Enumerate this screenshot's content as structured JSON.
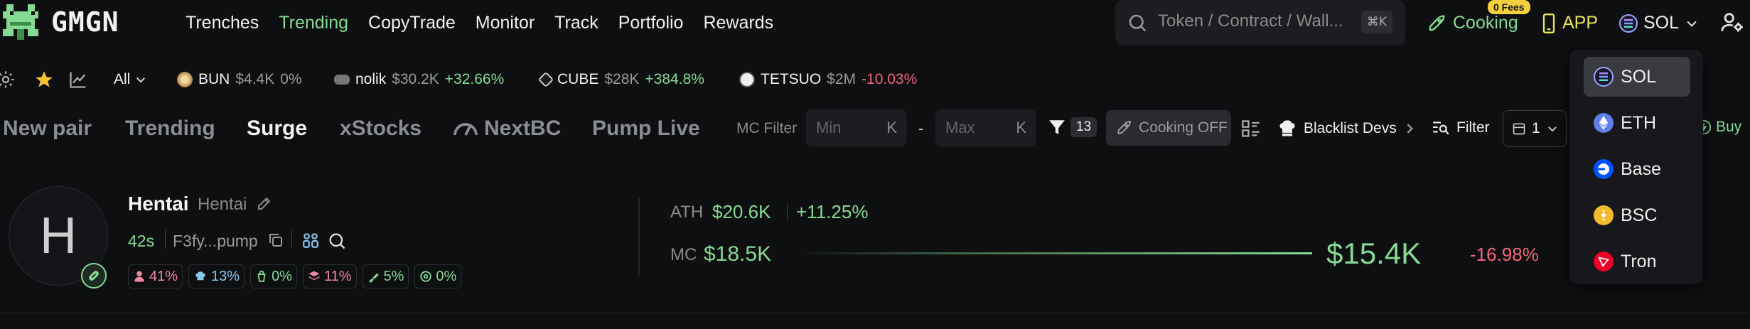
{
  "header": {
    "brand": "GMGN",
    "nav": [
      {
        "label": "Trenches",
        "active": false
      },
      {
        "label": "Trending",
        "active": true
      },
      {
        "label": "CopyTrade",
        "active": false
      },
      {
        "label": "Monitor",
        "active": false
      },
      {
        "label": "Track",
        "active": false
      },
      {
        "label": "Portfolio",
        "active": false
      },
      {
        "label": "Rewards",
        "active": false
      }
    ],
    "search_placeholder": "Token / Contract / Wall...",
    "search_shortcut": "⌘K",
    "cooking_label": "Cooking",
    "fees_badge": "0 Fees",
    "app_label": "APP",
    "chain_selected": "SOL"
  },
  "tickers_bar": {
    "filter_label": "All",
    "tickers": [
      {
        "symbol": "BUN",
        "price": "$4.4K",
        "change": "0%",
        "dir": "flat",
        "icon_color": "#c8a070"
      },
      {
        "symbol": "nolik",
        "price": "$30.2K",
        "change": "+32.66%",
        "dir": "up",
        "icon_color": "#cccccc"
      },
      {
        "symbol": "CUBE",
        "price": "$28K",
        "change": "+384.8%",
        "dir": "up",
        "icon_color": "#dddddd"
      },
      {
        "symbol": "TETSUO",
        "price": "$2M",
        "change": "-10.03%",
        "dir": "down",
        "icon_color": "#eeeeee"
      }
    ]
  },
  "tabs": {
    "items": [
      {
        "label": "New pair",
        "active": false
      },
      {
        "label": "Trending",
        "active": false
      },
      {
        "label": "Surge",
        "active": true
      },
      {
        "label": "xStocks",
        "active": false
      },
      {
        "label": "NextBC",
        "active": false
      },
      {
        "label": "Pump Live",
        "active": false
      }
    ],
    "mc_filter_label": "MC Filter",
    "min_placeholder": "Min",
    "max_placeholder": "Max",
    "unit": "K",
    "range_dash": "-",
    "filter_count": "13",
    "cooking_off_label": "Cooking OFF",
    "blacklist_label": "Blacklist Devs",
    "filter_label": "Filter",
    "preset_value": "1",
    "buy_label": "Buy"
  },
  "token": {
    "avatar_letter": "H",
    "name": "Hentai",
    "symbol": "Hentai",
    "age": "42s",
    "address": "F3fy...pump",
    "stats": [
      {
        "icon": "user-icon",
        "value": "41%",
        "color": "#f08aa0"
      },
      {
        "icon": "chef-hat-icon",
        "value": "13%",
        "color": "#8ac8f0"
      },
      {
        "icon": "bundle-icon",
        "value": "0%",
        "color": "#86d993"
      },
      {
        "icon": "layers-icon",
        "value": "11%",
        "color": "#f08aa0"
      },
      {
        "icon": "sniper-icon",
        "value": "5%",
        "color": "#86d993"
      },
      {
        "icon": "target-icon",
        "value": "0%",
        "color": "#86d993"
      }
    ],
    "ath_label": "ATH",
    "ath_value": "$20.6K",
    "ath_change": "+11.25%",
    "mc_label": "MC",
    "mc_value": "$18.5K",
    "price": "$15.4K",
    "price_change": "-16.98%"
  },
  "chain_dropdown": {
    "items": [
      {
        "label": "SOL",
        "active": true,
        "color": "#9945ff"
      },
      {
        "label": "ETH",
        "active": false,
        "color": "#627eea"
      },
      {
        "label": "Base",
        "active": false,
        "color": "#0052ff"
      },
      {
        "label": "BSC",
        "active": false,
        "color": "#f3ba2f"
      },
      {
        "label": "Tron",
        "active": false,
        "color": "#ef0027"
      }
    ]
  },
  "colors": {
    "accent_green": "#86d993",
    "negative_red": "#f0667a",
    "background": "#0e0f11"
  }
}
